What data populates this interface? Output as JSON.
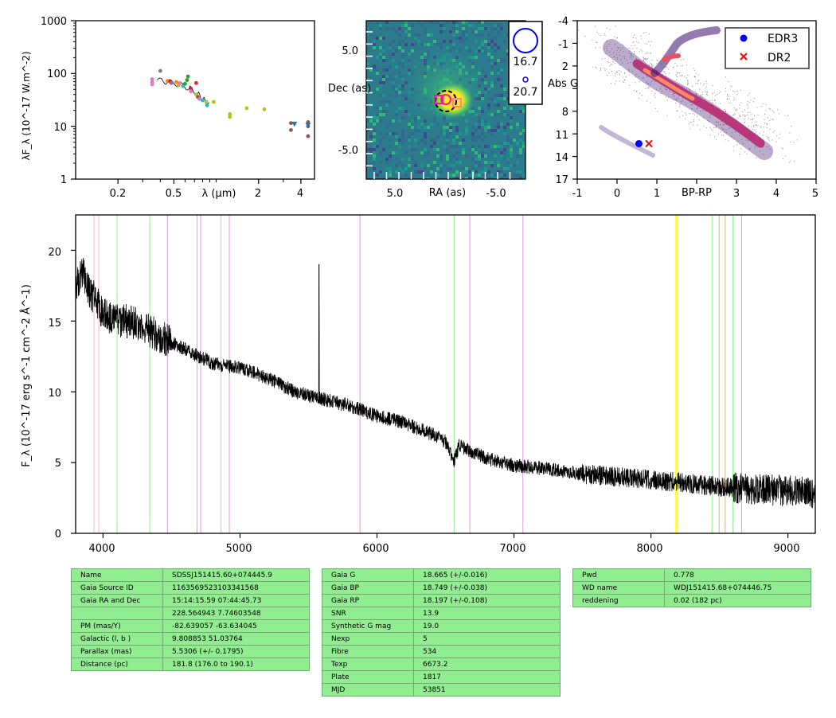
{
  "sed": {
    "ylabel": "λF_λ (10^-17 W.m^-2)",
    "xlabel": "λ (μm)",
    "yticks": [
      "1000",
      "100",
      "10",
      "1"
    ],
    "xticks": [
      "0.2",
      "0.5",
      "2",
      "4"
    ],
    "xscale": "log",
    "yscale": "log",
    "xlim": [
      0.1,
      5.0
    ],
    "ylim": [
      1,
      1000
    ]
  },
  "cutout": {
    "xlabel": "RA (as)",
    "ylabel": "Dec (as)",
    "xticks": [
      "5.0",
      "-5.0"
    ],
    "yticks": [
      "5.0",
      "-5.0"
    ],
    "legend": [
      "16.7",
      "20.7"
    ]
  },
  "hrd": {
    "xlabel": "BP-RP",
    "ylabel": "Abs G",
    "xticks": [
      "-1",
      "0",
      "1",
      "3",
      "4",
      "5"
    ],
    "yticks": [
      "-4",
      "-1",
      "2",
      "5",
      "8",
      "11",
      "14",
      "17"
    ],
    "xlim": [
      -1,
      5
    ],
    "ylim": [
      17,
      -4
    ],
    "legend": [
      {
        "label": "EDR3",
        "color": "#0000ff",
        "marker": "circle"
      },
      {
        "label": "DR2",
        "color": "#ff0000",
        "marker": "x"
      }
    ]
  },
  "spectrum": {
    "ylabel": "F_λ (10^-17 erg s^-1 cm^-2 Å^-1)",
    "xticks": [
      "4000",
      "5000",
      "6000",
      "7000",
      "8000",
      "9000"
    ],
    "yticks": [
      "0",
      "5",
      "10",
      "15",
      "20"
    ],
    "xlim": [
      3800,
      9200
    ],
    "ylim": [
      0,
      22.5
    ]
  },
  "tables": {
    "left": [
      [
        "Name",
        "SDSSJ151415.60+074445.9"
      ],
      [
        "Gaia Source ID",
        "1163569523103341568"
      ],
      [
        "Gaia RA and Dec",
        "15:14:15.59    07:44:45.73"
      ],
      [
        "",
        "228.564943    7.74603548"
      ],
      [
        "PM (mas/Y)",
        "-82.639057    -63.634045"
      ],
      [
        "Galactic (l, b )",
        "9.808853    51.03764"
      ],
      [
        "Parallax (mas)",
        "5.5306 (+/- 0.1795)"
      ],
      [
        "Distance (pc)",
        "181.8 (176.0 to 190.1)"
      ]
    ],
    "middle": [
      [
        "Gaia G",
        "18.665 (+/-0.016)"
      ],
      [
        "Gaia BP",
        "18.749 (+/-0.038)"
      ],
      [
        "Gaia RP",
        "18.197 (+/-0.108)"
      ],
      [
        "SNR",
        "13.9"
      ],
      [
        "Synthetic G mag",
        "19.0"
      ],
      [
        "Nexp",
        "5"
      ],
      [
        "Fibre",
        "534"
      ],
      [
        "Texp",
        "6673.2"
      ],
      [
        "Plate",
        "1817"
      ],
      [
        "MJD",
        "53851"
      ]
    ],
    "right": [
      [
        "Pwd",
        "0.778"
      ],
      [
        "WD name",
        "WDJ151415.68+074446.75"
      ],
      [
        "reddening",
        "0.02 (182 pc)"
      ]
    ]
  },
  "chart_data": [
    {
      "type": "scatter",
      "panel": "sed",
      "xscale": "log",
      "yscale": "log",
      "xlim": [
        0.1,
        5.0
      ],
      "ylim": [
        1,
        1000
      ],
      "points": [
        {
          "x": 0.35,
          "y": 78,
          "color": "#e377c2"
        },
        {
          "x": 0.35,
          "y": 68,
          "color": "#e377c2"
        },
        {
          "x": 0.35,
          "y": 62,
          "color": "#e377c2"
        },
        {
          "x": 0.4,
          "y": 112,
          "color": "#7f7f7f"
        },
        {
          "x": 0.45,
          "y": 72,
          "color": "#ff7f0e"
        },
        {
          "x": 0.47,
          "y": 70,
          "color": "#d62728"
        },
        {
          "x": 0.48,
          "y": 66,
          "color": "#9467bd"
        },
        {
          "x": 0.52,
          "y": 69,
          "color": "#ff7f0e"
        },
        {
          "x": 0.54,
          "y": 60,
          "color": "#bcbd22"
        },
        {
          "x": 0.55,
          "y": 66,
          "color": "#e377c2"
        },
        {
          "x": 0.58,
          "y": 58,
          "color": "#17becf"
        },
        {
          "x": 0.6,
          "y": 64,
          "color": "#2ca02c"
        },
        {
          "x": 0.62,
          "y": 75,
          "color": "#2ca02c"
        },
        {
          "x": 0.63,
          "y": 88,
          "color": "#2ca02c"
        },
        {
          "x": 0.66,
          "y": 52,
          "color": "#d62728"
        },
        {
          "x": 0.66,
          "y": 46,
          "color": "#e377c2"
        },
        {
          "x": 0.72,
          "y": 66,
          "color": "#d62728"
        },
        {
          "x": 0.72,
          "y": 40,
          "color": "#bcbd22"
        },
        {
          "x": 0.74,
          "y": 36,
          "color": "#8c564b"
        },
        {
          "x": 0.76,
          "y": 33,
          "color": "#e377c2"
        },
        {
          "x": 0.8,
          "y": 31,
          "color": "#17becf"
        },
        {
          "x": 0.85,
          "y": 29,
          "color": "#bcbd22"
        },
        {
          "x": 0.86,
          "y": 25,
          "color": "#17becf"
        },
        {
          "x": 0.96,
          "y": 29,
          "color": "#bcbd22"
        },
        {
          "x": 1.25,
          "y": 17,
          "color": "#bcbd22"
        },
        {
          "x": 1.25,
          "y": 15,
          "color": "#bcbd22"
        },
        {
          "x": 1.65,
          "y": 22,
          "color": "#bcbd22"
        },
        {
          "x": 2.2,
          "y": 21,
          "color": "#bcbd22"
        },
        {
          "x": 3.4,
          "y": 11.5,
          "color": "#8c564b"
        },
        {
          "x": 3.4,
          "y": 8.5,
          "color": "#8c564b"
        },
        {
          "x": 3.6,
          "y": 11,
          "color": "#1f77b4",
          "marker": "triangle"
        },
        {
          "x": 4.5,
          "y": 12,
          "color": "#8c564b"
        },
        {
          "x": 4.5,
          "y": 10,
          "color": "#8c564b"
        },
        {
          "x": 4.5,
          "y": 6.5,
          "color": "#8c564b"
        },
        {
          "x": 4.5,
          "y": 10.5,
          "color": "#1f77b4",
          "marker": "triangle"
        }
      ],
      "spectrum_line": {
        "x": [
          0.38,
          0.45,
          0.55,
          0.65,
          0.75,
          0.82,
          0.9
        ],
        "y": [
          75,
          70,
          62,
          52,
          40,
          32,
          25
        ],
        "color": "#000000"
      }
    },
    {
      "type": "scatter",
      "panel": "hrd",
      "xlim": [
        -1,
        5
      ],
      "ylim": [
        17,
        -4
      ],
      "series": [
        {
          "name": "EDR3",
          "x": [
            0.55
          ],
          "y": [
            12.3
          ],
          "color": "#0000ff"
        },
        {
          "name": "DR2",
          "x": [
            0.8
          ],
          "y": [
            12.3
          ],
          "color": "#ff0000"
        }
      ]
    },
    {
      "type": "line",
      "panel": "spectrum",
      "xlim": [
        3800,
        9200
      ],
      "ylim": [
        0,
        22.5
      ],
      "x": [
        3800,
        3850,
        3900,
        3950,
        4000,
        4100,
        4200,
        4400,
        4600,
        4800,
        5000,
        5200,
        5400,
        5600,
        5800,
        6000,
        6200,
        6400,
        6500,
        6560,
        6600,
        6800,
        7000,
        7200,
        7500,
        8000,
        8500,
        9000,
        9200
      ],
      "y": [
        17.5,
        18.5,
        17,
        16.5,
        15.5,
        15,
        15,
        14,
        13,
        12,
        11.7,
        11,
        10,
        9.5,
        9,
        8.3,
        7.8,
        7,
        6.5,
        5,
        6.2,
        5.3,
        4.8,
        4.6,
        4.2,
        3.8,
        3.3,
        3,
        2.8
      ],
      "vlines": [
        {
          "x": 3934,
          "color": "#ffb6c1"
        },
        {
          "x": 3969,
          "color": "#ffb6c1"
        },
        {
          "x": 4102,
          "color": "#90ee90"
        },
        {
          "x": 4341,
          "color": "#90ee90"
        },
        {
          "x": 4471,
          "color": "#dda0dd"
        },
        {
          "x": 4686,
          "color": "#dda0dd"
        },
        {
          "x": 4713,
          "color": "#dda0dd"
        },
        {
          "x": 4861,
          "color": "#90ee90"
        },
        {
          "x": 4922,
          "color": "#dda0dd"
        },
        {
          "x": 5876,
          "color": "#dda0dd"
        },
        {
          "x": 6563,
          "color": "#90ee90"
        },
        {
          "x": 6678,
          "color": "#dda0dd"
        },
        {
          "x": 7065,
          "color": "#dda0dd"
        },
        {
          "x": 8183,
          "color": "#ffff00"
        },
        {
          "x": 8195,
          "color": "#ffff00"
        },
        {
          "x": 8446,
          "color": "#90ee90"
        },
        {
          "x": 8498,
          "color": "#d2b48c"
        },
        {
          "x": 8542,
          "color": "#d2b48c"
        },
        {
          "x": 8598,
          "color": "#90ee90"
        },
        {
          "x": 8662,
          "color": "#d2b48c"
        }
      ]
    }
  ]
}
